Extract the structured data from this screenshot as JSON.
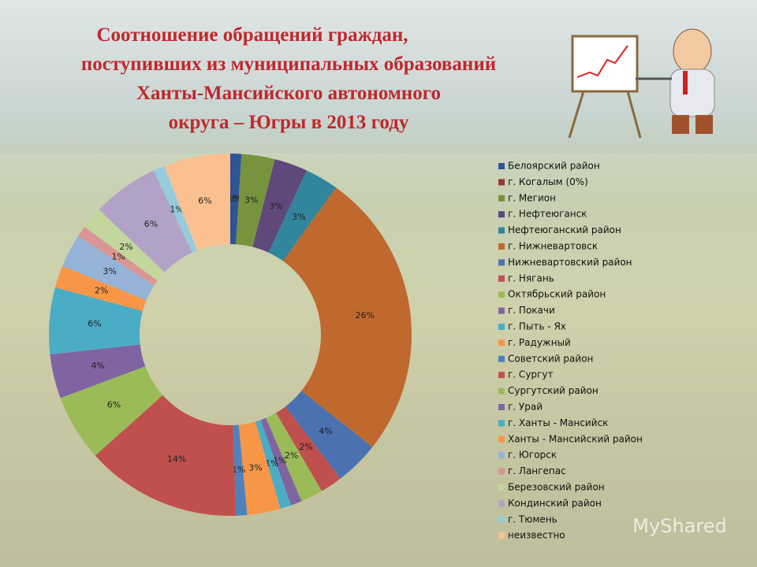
{
  "chart_data": {
    "type": "donut",
    "title": [
      "Соотношение обращений граждан,",
      "поступивших из муниципальных образований",
      "Ханты-Мансийского автономного",
      "округа – Югры  в 2013 году"
    ],
    "categories": [
      "Белоярский район",
      "г. Когалым (0%)",
      "г. Мегион",
      "г. Нефтеюганск",
      "Нефтеюганский район",
      "г. Нижневартовск",
      "Нижневартовский район",
      "г. Нягань",
      "Октябрьский район",
      "г. Покачи",
      "г. Пыть - Ях",
      "г. Радужный",
      "Советский район",
      "г. Сургут",
      "Сургутский район",
      "г. Урай",
      "г. Ханты - Мансийск",
      "Ханты - Мансийский район",
      "г. Югорск",
      "г. Лангепас",
      "Березовский район",
      "Кондинский район",
      "г. Тюмень",
      "неизвестно"
    ],
    "values": [
      1,
      0,
      3,
      3,
      3,
      26,
      4,
      2,
      2,
      1,
      1,
      3,
      1,
      14,
      6,
      4,
      6,
      2,
      3,
      1,
      2,
      6,
      1,
      6
    ],
    "value_labels": [
      "1%",
      "0%",
      "3%",
      "3%",
      "3%",
      "26%",
      "4%",
      "2%",
      "2%",
      "1%",
      "1%",
      "3%",
      "1%",
      "14%",
      "6%",
      "4%",
      "6%",
      "2%",
      "3%",
      "1%",
      "2%",
      "6%",
      "1%",
      "6%"
    ],
    "colors": [
      "#2f5597",
      "#953735",
      "#77933c",
      "#5f497a",
      "#31859c",
      "#c0692e",
      "#4a72b0",
      "#c0504d",
      "#9bbb59",
      "#8064a2",
      "#4bacc6",
      "#f79646",
      "#4f81bd",
      "#c0504d",
      "#9bbb59",
      "#8064a2",
      "#4bacc6",
      "#f79646",
      "#95b3d7",
      "#d99694",
      "#c3d69b",
      "#b3a2c7",
      "#93cddd",
      "#fac090"
    ],
    "watermark": "MyShared"
  }
}
